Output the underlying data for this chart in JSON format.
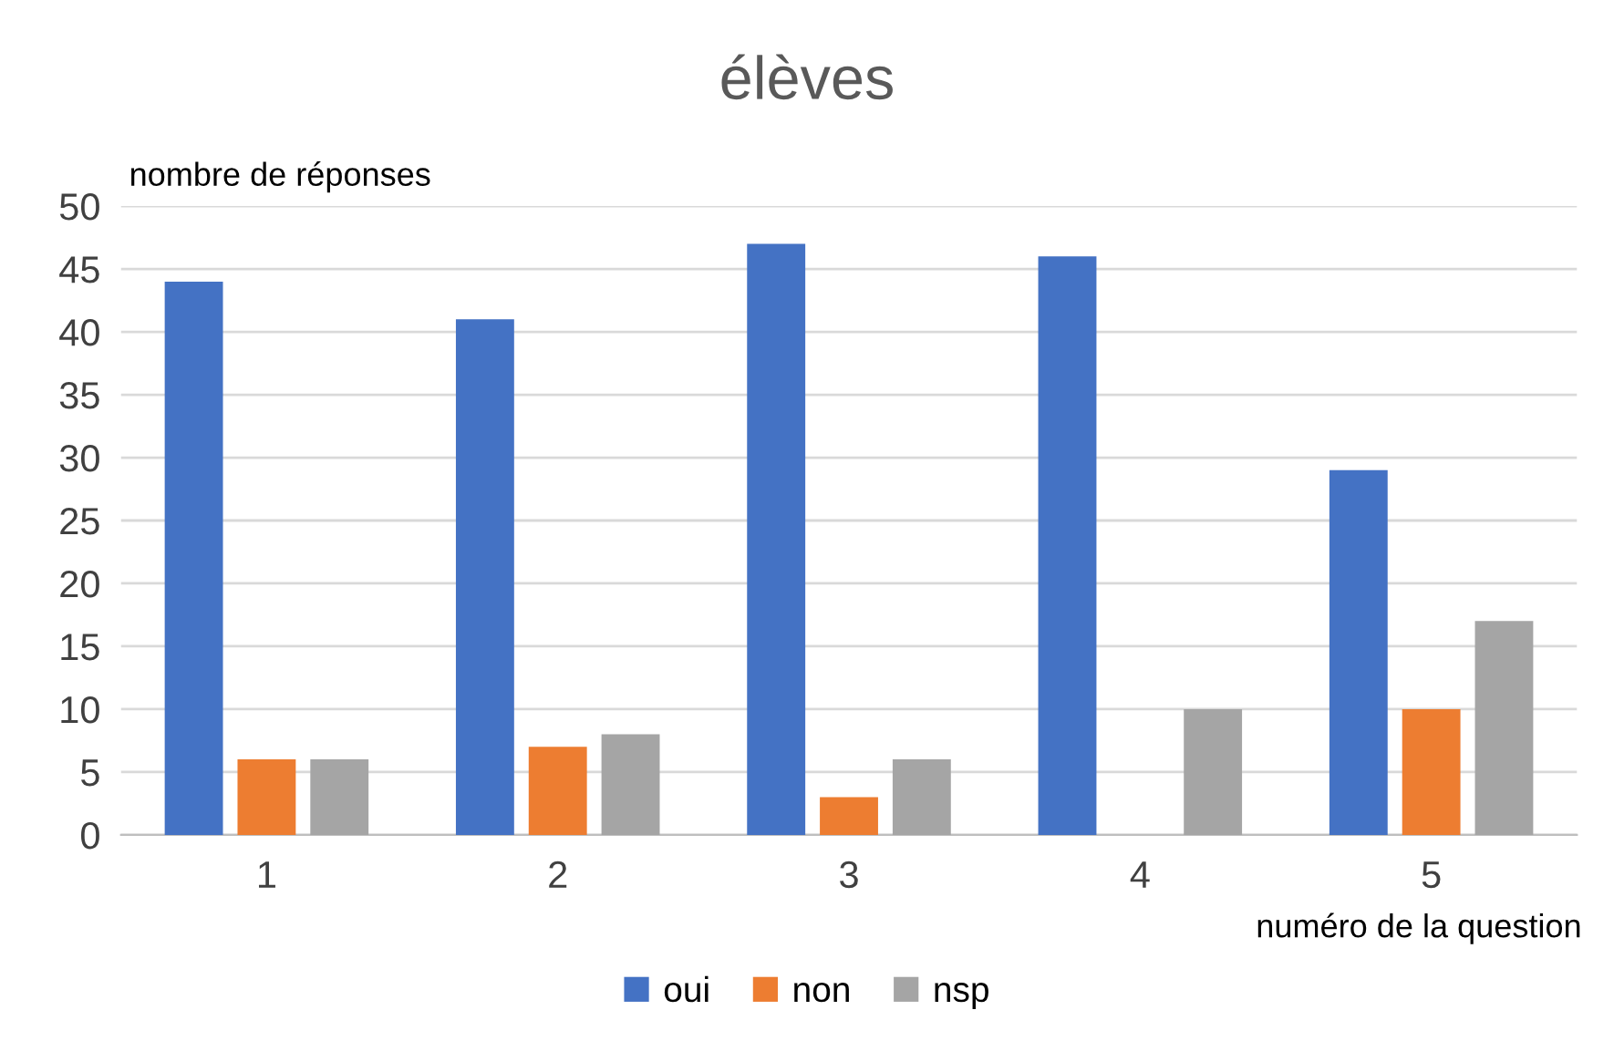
{
  "chart_data": {
    "type": "bar",
    "title": "élèves",
    "ylabel": "nombre de réponses",
    "xlabel": "numéro de la question",
    "categories": [
      "1",
      "2",
      "3",
      "4",
      "5"
    ],
    "series": [
      {
        "name": "oui",
        "color": "#4472c4",
        "values": [
          44,
          41,
          47,
          46,
          29
        ]
      },
      {
        "name": "non",
        "color": "#ed7d31",
        "values": [
          6,
          7,
          3,
          0,
          10
        ]
      },
      {
        "name": "nsp",
        "color": "#a5a5a5",
        "values": [
          6,
          8,
          6,
          10,
          17
        ]
      }
    ],
    "ylim": [
      0,
      50
    ],
    "yticks": [
      0,
      5,
      10,
      15,
      20,
      25,
      30,
      35,
      40,
      45,
      50
    ],
    "grid": "y",
    "legend": "bottom"
  }
}
